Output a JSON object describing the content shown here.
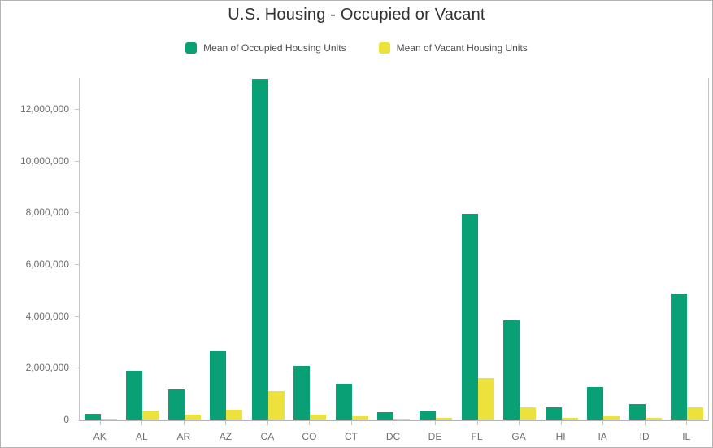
{
  "chart_data": {
    "type": "bar",
    "title": "U.S. Housing - Occupied or Vacant",
    "xlabel": "",
    "ylabel": "",
    "categories": [
      "AK",
      "AL",
      "AR",
      "AZ",
      "CA",
      "CO",
      "CT",
      "DC",
      "DE",
      "FL",
      "GA",
      "HI",
      "IA",
      "ID",
      "IL"
    ],
    "series": [
      {
        "name": "Mean of Occupied Housing Units",
        "color": "#0aa075",
        "values": [
          210000,
          1880000,
          1160000,
          2630000,
          13160000,
          2090000,
          1370000,
          270000,
          340000,
          7960000,
          3830000,
          460000,
          1250000,
          610000,
          4880000
        ]
      },
      {
        "name": "Mean of Vacant Housing Units",
        "color": "#ede23c",
        "values": [
          40000,
          350000,
          180000,
          380000,
          1090000,
          200000,
          130000,
          30000,
          60000,
          1610000,
          480000,
          50000,
          130000,
          70000,
          480000
        ]
      }
    ],
    "ylim": [
      0,
      13200000
    ],
    "yticks": [
      0,
      2000000,
      4000000,
      6000000,
      8000000,
      10000000,
      12000000
    ],
    "ytick_labels": [
      "0",
      "2,000,000",
      "4,000,000",
      "6,000,000",
      "8,000,000",
      "10,000,000",
      "12,000,000"
    ],
    "legend_position": "top",
    "grid": false
  },
  "colors": {
    "title_text": "#323232",
    "legend_text": "#4c4c4c",
    "axis_label_text": "#6e6e6e",
    "axis_line": "#c5c5c5",
    "frame_border": "#b3b3b3",
    "background": "#ffffff"
  }
}
